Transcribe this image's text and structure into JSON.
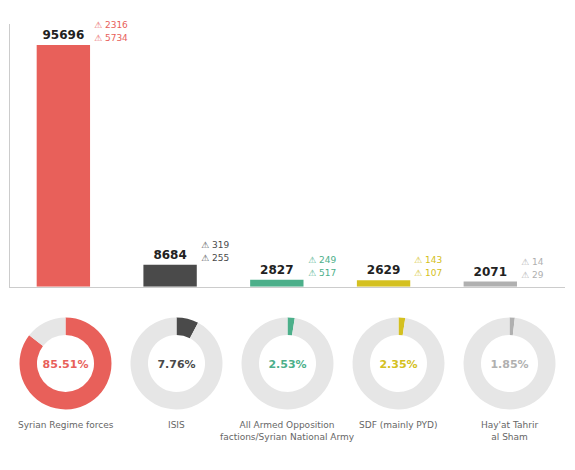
{
  "chart_data": [
    {
      "type": "bar",
      "categories": [
        "Syrian Regime forces",
        "ISIS",
        "All Armed Opposition\nfactions/Syrian National Army",
        "SDF (mainly PYD)",
        "Hay'at Tahrir\nal Sham"
      ],
      "values": [
        95696,
        8684,
        2827,
        2629,
        2071
      ],
      "colors": [
        "#e8605a",
        "#4a4a4a",
        "#4caf8a",
        "#d4c020",
        "#b0b0b0"
      ],
      "male_counts": [
        2316,
        319,
        249,
        143,
        14
      ],
      "female_counts": [
        5734,
        255,
        517,
        107,
        29
      ],
      "icon": "⚠",
      "ylim": [
        0,
        104000
      ],
      "data_labels": true,
      "tick_labels": false,
      "grid": false
    },
    {
      "type": "pie",
      "categories": [
        "Syrian Regime forces",
        "ISIS",
        "All Armed Opposition\nfactions/Syrian National Army",
        "SDF (mainly PYD)",
        "Hay'at Tahrir\nal Sham"
      ],
      "values": [
        85.51,
        7.76,
        2.53,
        2.35,
        1.85
      ],
      "value_labels": [
        "85.51%",
        "7.76%",
        "2.53%",
        "2.35%",
        "1.85%"
      ],
      "colors": [
        "#e8605a",
        "#4a4a4a",
        "#4caf8a",
        "#d4c020",
        "#b0b0b0"
      ],
      "data_labels": true
    }
  ]
}
